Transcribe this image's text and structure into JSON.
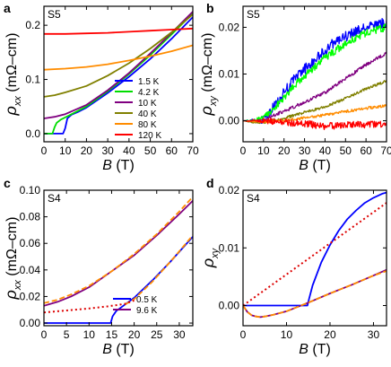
{
  "chart_data": [
    {
      "id": "a",
      "type": "line",
      "panel_label": "a",
      "sample": "S5",
      "xlabel": "B (T)",
      "ylabel": "ρxx (mΩ–cm)",
      "xlim": [
        0,
        70
      ],
      "ylim": [
        -0.015,
        0.235
      ],
      "xticks": [
        0,
        10,
        20,
        30,
        40,
        50,
        60,
        70
      ],
      "yticks": [
        0.0,
        0.1,
        0.2
      ],
      "ytick_labels": [
        "0.0",
        "0.1",
        "0.2"
      ],
      "legend_position": "lower-right",
      "series": [
        {
          "name": "1.5 K",
          "color": "#0000ff",
          "x": [
            0,
            9,
            10,
            11,
            13,
            16,
            20,
            30,
            40,
            50,
            60,
            70
          ],
          "y": [
            0,
            0,
            0.01,
            0.028,
            0.035,
            0.04,
            0.048,
            0.075,
            0.105,
            0.138,
            0.175,
            0.215
          ]
        },
        {
          "name": "4.2 K",
          "color": "#00dd00",
          "x": [
            0,
            4,
            5,
            6,
            8,
            12,
            20,
            30,
            40,
            50,
            60,
            70
          ],
          "y": [
            0,
            0,
            0.012,
            0.02,
            0.026,
            0.034,
            0.05,
            0.078,
            0.11,
            0.145,
            0.183,
            0.222
          ]
        },
        {
          "name": "10 K",
          "color": "#800080",
          "x": [
            0,
            5,
            10,
            20,
            30,
            40,
            50,
            60,
            70
          ],
          "y": [
            0.028,
            0.031,
            0.036,
            0.053,
            0.08,
            0.112,
            0.148,
            0.186,
            0.225
          ]
        },
        {
          "name": "40 K",
          "color": "#808000",
          "x": [
            0,
            5,
            10,
            20,
            30,
            40,
            50,
            60,
            70
          ],
          "y": [
            0.068,
            0.071,
            0.076,
            0.088,
            0.107,
            0.13,
            0.157,
            0.187,
            0.22
          ]
        },
        {
          "name": "80 K",
          "color": "#ff8c00",
          "x": [
            0,
            10,
            20,
            30,
            40,
            50,
            60,
            70
          ],
          "y": [
            0.118,
            0.12,
            0.123,
            0.128,
            0.135,
            0.143,
            0.152,
            0.163
          ]
        },
        {
          "name": "120 K",
          "color": "#ff0000",
          "x": [
            0,
            10,
            20,
            30,
            40,
            50,
            60,
            70
          ],
          "y": [
            0.184,
            0.184,
            0.185,
            0.186,
            0.188,
            0.19,
            0.192,
            0.194
          ]
        }
      ]
    },
    {
      "id": "b",
      "type": "line",
      "panel_label": "b",
      "sample": "S5",
      "xlabel": "B (T)",
      "ylabel": "ρxy (mΩ–cm)",
      "xlim": [
        0,
        70
      ],
      "ylim": [
        -0.0045,
        0.0245
      ],
      "xticks": [
        0,
        10,
        20,
        30,
        40,
        50,
        60,
        70
      ],
      "yticks": [
        0.0,
        0.01,
        0.02
      ],
      "ytick_labels": [
        "0.00",
        "0.01",
        "0.02"
      ],
      "series": [
        {
          "name": "1.5 K",
          "color": "#0000ff",
          "x": [
            0,
            9,
            12,
            15,
            20,
            25,
            30,
            35,
            40,
            45,
            50,
            55,
            60,
            65,
            70
          ],
          "y": [
            0,
            0,
            0.001,
            0.003,
            0.006,
            0.009,
            0.011,
            0.013,
            0.015,
            0.017,
            0.018,
            0.019,
            0.02,
            0.0205,
            0.021
          ],
          "noise": 0.0022
        },
        {
          "name": "4.2 K",
          "color": "#00ff00",
          "x": [
            0,
            5,
            10,
            15,
            20,
            25,
            30,
            35,
            40,
            45,
            50,
            55,
            60,
            65,
            70
          ],
          "y": [
            0,
            0,
            0.0008,
            0.0025,
            0.005,
            0.0075,
            0.0095,
            0.0115,
            0.0135,
            0.015,
            0.0165,
            0.0178,
            0.0188,
            0.0195,
            0.02
          ],
          "noise": 0.0016
        },
        {
          "name": "10 K",
          "color": "#800080",
          "x": [
            0,
            5,
            10,
            20,
            30,
            40,
            50,
            60,
            70
          ],
          "y": [
            0,
            -0.0002,
            0.0003,
            0.002,
            0.004,
            0.006,
            0.009,
            0.012,
            0.0145
          ],
          "noise": 0.0007
        },
        {
          "name": "40 K",
          "color": "#808000",
          "x": [
            0,
            5,
            10,
            20,
            30,
            40,
            50,
            60,
            70
          ],
          "y": [
            0,
            -0.0004,
            -0.0004,
            0.0005,
            0.0018,
            0.003,
            0.0048,
            0.0068,
            0.0085
          ],
          "noise": 0.0006
        },
        {
          "name": "80 K",
          "color": "#ff8c00",
          "x": [
            0,
            10,
            20,
            30,
            40,
            50,
            60,
            70
          ],
          "y": [
            0,
            -0.0003,
            0.0,
            0.0006,
            0.0012,
            0.002,
            0.0027,
            0.0032
          ],
          "noise": 0.0006
        },
        {
          "name": "120 K",
          "color": "#ff0000",
          "x": [
            0,
            10,
            20,
            30,
            40,
            50,
            60,
            70
          ],
          "y": [
            0,
            0,
            -0.0003,
            -0.0006,
            -0.0012,
            -0.0009,
            -0.0008,
            -0.0008
          ],
          "noise": 0.0015
        }
      ]
    },
    {
      "id": "c",
      "type": "line",
      "panel_label": "c",
      "sample": "S4",
      "xlabel": "B (T)",
      "ylabel": "ρxx (mΩ–cm)",
      "xlim": [
        0,
        33
      ],
      "ylim": [
        -0.002,
        0.1
      ],
      "xticks": [
        0,
        5,
        10,
        15,
        20,
        25,
        30
      ],
      "yticks": [
        0.0,
        0.02,
        0.04,
        0.06,
        0.08,
        0.1
      ],
      "ytick_labels": [
        "0.00",
        "0.02",
        "0.04",
        "0.06",
        "0.08",
        "0.10"
      ],
      "legend_position": "lower-right",
      "series": [
        {
          "name": "0.5 K",
          "color": "#0000ff",
          "x": [
            0,
            14.8,
            15.2,
            16,
            18,
            20,
            24,
            28,
            33
          ],
          "y": [
            0,
            0,
            0.005,
            0.009,
            0.014,
            0.019,
            0.032,
            0.046,
            0.065
          ]
        },
        {
          "name": "9.6 K",
          "color": "#800080",
          "x": [
            0,
            3,
            6,
            10,
            15,
            20,
            25,
            30,
            33
          ],
          "y": [
            0.013,
            0.016,
            0.02,
            0.027,
            0.039,
            0.051,
            0.066,
            0.082,
            0.092
          ]
        },
        {
          "name": "",
          "color": "#ff8c00",
          "dash": "dashed",
          "x": [
            0,
            3,
            6,
            10,
            15,
            20,
            25,
            30,
            33
          ],
          "y": [
            0.015,
            0.0175,
            0.0215,
            0.028,
            0.039,
            0.052,
            0.067,
            0.084,
            0.095
          ]
        },
        {
          "name": "",
          "color": "#ff8c00",
          "dash": "dashed",
          "x": [
            18,
            20,
            24,
            28,
            33
          ],
          "y": [
            0.014,
            0.018,
            0.031,
            0.046,
            0.066
          ]
        },
        {
          "name": "",
          "color": "#dd0000",
          "dash": "dotted",
          "x": [
            0,
            5,
            10,
            14,
            16,
            18,
            20
          ],
          "y": [
            0.008,
            0.0095,
            0.011,
            0.0125,
            0.0135,
            0.0145,
            0.017
          ]
        }
      ]
    },
    {
      "id": "d",
      "type": "line",
      "panel_label": "d",
      "sample": "S4",
      "xlabel": "B (T)",
      "ylabel": "ρxy",
      "xlim": [
        0,
        33
      ],
      "ylim": [
        -0.0035,
        0.02
      ],
      "xticks": [
        0,
        10,
        20,
        30
      ],
      "yticks": [
        0.0,
        0.01,
        0.02
      ],
      "ytick_labels": [
        "0.00",
        "0.01",
        "0.02"
      ],
      "series": [
        {
          "name": "0.5 K",
          "color": "#0000ff",
          "x": [
            0,
            14.8,
            15.2,
            16,
            18,
            20,
            22,
            24,
            26,
            28,
            30,
            32,
            33
          ],
          "y": [
            0,
            0,
            0.0012,
            0.0035,
            0.0075,
            0.0105,
            0.013,
            0.015,
            0.0165,
            0.0178,
            0.0187,
            0.0194,
            0.0196
          ]
        },
        {
          "name": "9.6 K",
          "color": "#800080",
          "x": [
            0,
            1,
            2,
            3,
            4,
            5,
            7,
            10,
            15,
            20,
            25,
            30,
            33
          ],
          "y": [
            0,
            -0.0011,
            -0.0017,
            -0.0019,
            -0.002,
            -0.0019,
            -0.0016,
            -0.001,
            0.0005,
            0.0021,
            0.0036,
            0.0052,
            0.0062
          ]
        },
        {
          "name": "",
          "color": "#ff8c00",
          "dash": "dashed",
          "x": [
            0,
            1,
            2,
            3,
            4,
            5,
            7,
            10,
            15,
            20,
            25,
            30,
            33
          ],
          "y": [
            0,
            -0.0011,
            -0.0017,
            -0.0019,
            -0.002,
            -0.0019,
            -0.0016,
            -0.001,
            0.0005,
            0.0021,
            0.0036,
            0.0052,
            0.006
          ]
        },
        {
          "name": "",
          "color": "#dd0000",
          "dash": "dotted",
          "x": [
            0,
            15,
            33
          ],
          "y": [
            0,
            0.0081,
            0.0178
          ]
        }
      ]
    }
  ]
}
